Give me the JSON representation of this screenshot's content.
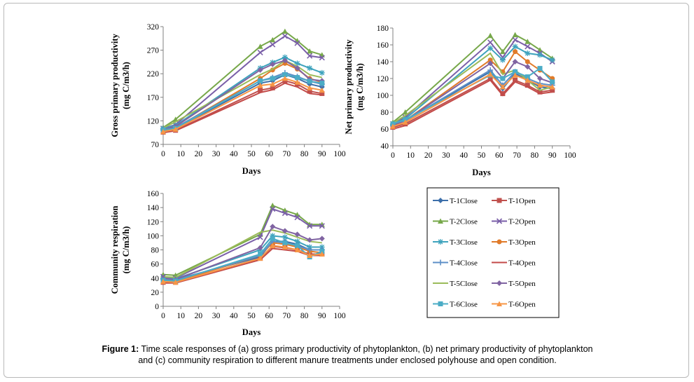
{
  "caption": {
    "label": "Figure 1:",
    "text": "Time scale responses of (a) gross primary productivity of phytoplankton, (b) net primary productivity of phytoplankton and (c) community respiration to different manure treatments under enclosed polyhouse and open condition."
  },
  "legend": {
    "entries": [
      "T-1Close",
      "T-1Open",
      "T-2Close",
      "T-2Open",
      "T-3Close",
      "T-3Open",
      "T-4Close",
      "T-4Open",
      "T-5Close",
      "T-5Open",
      "T-6Close",
      "T-6Open"
    ]
  },
  "chart_data": [
    {
      "type": "line",
      "id": "gpp",
      "ylabel_line1": "Gross primary productivity",
      "ylabel_line2": "(mg C/m3/h)",
      "xlabel": "Days",
      "xlim": [
        0,
        100
      ],
      "ylim": [
        70,
        320
      ],
      "xticks": [
        0,
        10,
        20,
        30,
        40,
        50,
        60,
        70,
        80,
        90,
        100
      ],
      "yticks": [
        70,
        120,
        170,
        220,
        270,
        320
      ],
      "x": [
        0,
        7,
        55,
        62,
        69,
        76,
        83,
        90
      ],
      "series": [
        {
          "name": "T-1Close",
          "color": "#3c6faa",
          "marker": "diamond",
          "values": [
            100,
            104,
            200,
            205,
            218,
            210,
            198,
            192
          ]
        },
        {
          "name": "T-1Open",
          "color": "#c0504d",
          "marker": "square",
          "values": [
            96,
            100,
            185,
            190,
            205,
            198,
            183,
            178
          ]
        },
        {
          "name": "T-2Close",
          "color": "#77a84a",
          "marker": "triangle",
          "values": [
            106,
            123,
            278,
            292,
            310,
            290,
            268,
            260
          ]
        },
        {
          "name": "T-2Open",
          "color": "#7a5fa8",
          "marker": "x",
          "values": [
            104,
            112,
            265,
            282,
            300,
            285,
            258,
            254
          ]
        },
        {
          "name": "T-3Close",
          "color": "#3ea3bd",
          "marker": "star",
          "values": [
            104,
            110,
            232,
            244,
            255,
            242,
            232,
            222
          ]
        },
        {
          "name": "T-3Open",
          "color": "#e07b2a",
          "marker": "circle",
          "values": [
            100,
            105,
            210,
            228,
            242,
            230,
            210,
            202
          ]
        },
        {
          "name": "T-4Close",
          "color": "#5d8fc7",
          "marker": "plus",
          "values": [
            102,
            106,
            205,
            212,
            222,
            214,
            204,
            198
          ]
        },
        {
          "name": "T-4Open",
          "color": "#c34a48",
          "marker": "none",
          "values": [
            95,
            99,
            180,
            186,
            200,
            192,
            178,
            175
          ]
        },
        {
          "name": "T-5Close",
          "color": "#9bbb59",
          "marker": "none",
          "values": [
            105,
            118,
            218,
            230,
            248,
            236,
            218,
            212
          ]
        },
        {
          "name": "T-5Open",
          "color": "#8064a2",
          "marker": "diamond",
          "values": [
            102,
            108,
            228,
            240,
            248,
            232,
            208,
            205
          ]
        },
        {
          "name": "T-6Close",
          "color": "#4bacc6",
          "marker": "square",
          "values": [
            101,
            104,
            205,
            210,
            218,
            212,
            204,
            200
          ]
        },
        {
          "name": "T-6Open",
          "color": "#f79646",
          "marker": "triangle",
          "values": [
            97,
            102,
            195,
            198,
            210,
            202,
            190,
            185
          ]
        }
      ]
    },
    {
      "type": "line",
      "id": "npp",
      "ylabel_line1": "Net primary productivity",
      "ylabel_line2": "(mg C/m3/h)",
      "xlabel": "Days",
      "xlim": [
        0,
        100
      ],
      "ylim": [
        40,
        180
      ],
      "xticks": [
        0,
        10,
        20,
        30,
        40,
        50,
        60,
        70,
        80,
        90,
        100
      ],
      "yticks": [
        40,
        60,
        80,
        100,
        120,
        140,
        160,
        180
      ],
      "x": [
        0,
        7,
        55,
        62,
        69,
        76,
        83,
        90
      ],
      "series": [
        {
          "name": "T-1Close",
          "color": "#3c6faa",
          "marker": "diamond",
          "values": [
            65,
            70,
            128,
            108,
            126,
            118,
            110,
            108
          ]
        },
        {
          "name": "T-1Open",
          "color": "#c0504d",
          "marker": "square",
          "values": [
            62,
            66,
            120,
            102,
            118,
            112,
            104,
            106
          ]
        },
        {
          "name": "T-2Close",
          "color": "#77a84a",
          "marker": "triangle",
          "values": [
            68,
            80,
            171,
            152,
            172,
            164,
            154,
            144
          ]
        },
        {
          "name": "T-2Open",
          "color": "#7a5fa8",
          "marker": "x",
          "values": [
            66,
            74,
            163,
            145,
            166,
            158,
            150,
            140
          ]
        },
        {
          "name": "T-3Close",
          "color": "#3ea3bd",
          "marker": "star",
          "values": [
            66,
            72,
            156,
            142,
            158,
            150,
            148,
            142
          ]
        },
        {
          "name": "T-3Open",
          "color": "#e07b2a",
          "marker": "circle",
          "values": [
            65,
            70,
            142,
            128,
            152,
            140,
            130,
            120
          ]
        },
        {
          "name": "T-4Close",
          "color": "#5d8fc7",
          "marker": "plus",
          "values": [
            64,
            70,
            130,
            112,
            128,
            120,
            114,
            112
          ]
        },
        {
          "name": "T-4Open",
          "color": "#c34a48",
          "marker": "none",
          "values": [
            60,
            64,
            118,
            100,
            116,
            110,
            102,
            104
          ]
        },
        {
          "name": "T-5Close",
          "color": "#9bbb59",
          "marker": "none",
          "values": [
            67,
            76,
            150,
            125,
            130,
            118,
            106,
            110
          ]
        },
        {
          "name": "T-5Open",
          "color": "#8064a2",
          "marker": "diamond",
          "values": [
            64,
            70,
            138,
            120,
            140,
            134,
            120,
            115
          ]
        },
        {
          "name": "T-6Close",
          "color": "#4bacc6",
          "marker": "square",
          "values": [
            66,
            71,
            124,
            120,
            128,
            122,
            132,
            116
          ]
        },
        {
          "name": "T-6Open",
          "color": "#f79646",
          "marker": "triangle",
          "values": [
            63,
            68,
            125,
            110,
            124,
            118,
            112,
            110
          ]
        }
      ]
    },
    {
      "type": "line",
      "id": "cr",
      "ylabel_line1": "Community respiration",
      "ylabel_line2": "(mg C/m3/h)",
      "xlabel": "Days",
      "xlim": [
        0,
        100
      ],
      "ylim": [
        0,
        160
      ],
      "xticks": [
        0,
        10,
        20,
        30,
        40,
        50,
        60,
        70,
        80,
        90,
        100
      ],
      "yticks": [
        0,
        20,
        40,
        60,
        80,
        100,
        120,
        140,
        160
      ],
      "x": [
        0,
        7,
        55,
        62,
        69,
        76,
        83,
        90
      ],
      "series": [
        {
          "name": "T-1Close",
          "color": "#3c6faa",
          "marker": "diamond",
          "values": [
            38,
            38,
            70,
            92,
            92,
            88,
            80,
            80
          ]
        },
        {
          "name": "T-1Open",
          "color": "#c0504d",
          "marker": "square",
          "values": [
            34,
            34,
            68,
            85,
            83,
            80,
            74,
            74
          ]
        },
        {
          "name": "T-2Close",
          "color": "#77a84a",
          "marker": "triangle",
          "values": [
            45,
            44,
            102,
            143,
            136,
            130,
            116,
            116
          ]
        },
        {
          "name": "T-2Open",
          "color": "#7a5fa8",
          "marker": "x",
          "values": [
            42,
            40,
            98,
            138,
            132,
            126,
            114,
            114
          ]
        },
        {
          "name": "T-3Close",
          "color": "#3ea3bd",
          "marker": "star",
          "values": [
            40,
            39,
            80,
            100,
            98,
            92,
            84,
            84
          ]
        },
        {
          "name": "T-3Open",
          "color": "#e07b2a",
          "marker": "circle",
          "values": [
            36,
            35,
            72,
            90,
            88,
            84,
            78,
            76
          ]
        },
        {
          "name": "T-4Close",
          "color": "#5d8fc7",
          "marker": "plus",
          "values": [
            38,
            37,
            72,
            92,
            90,
            86,
            80,
            80
          ]
        },
        {
          "name": "T-4Open",
          "color": "#c34a48",
          "marker": "none",
          "values": [
            33,
            33,
            66,
            82,
            80,
            78,
            72,
            72
          ]
        },
        {
          "name": "T-5Close",
          "color": "#9bbb59",
          "marker": "none",
          "values": [
            42,
            41,
            105,
            108,
            104,
            98,
            92,
            90
          ]
        },
        {
          "name": "T-5Open",
          "color": "#8064a2",
          "marker": "diamond",
          "values": [
            40,
            38,
            83,
            113,
            107,
            102,
            94,
            96
          ]
        },
        {
          "name": "T-6Close",
          "color": "#4bacc6",
          "marker": "square",
          "values": [
            37,
            36,
            74,
            96,
            90,
            86,
            70,
            78
          ]
        },
        {
          "name": "T-6Open",
          "color": "#f79646",
          "marker": "triangle",
          "values": [
            35,
            34,
            68,
            86,
            84,
            80,
            72,
            74
          ]
        }
      ]
    }
  ]
}
